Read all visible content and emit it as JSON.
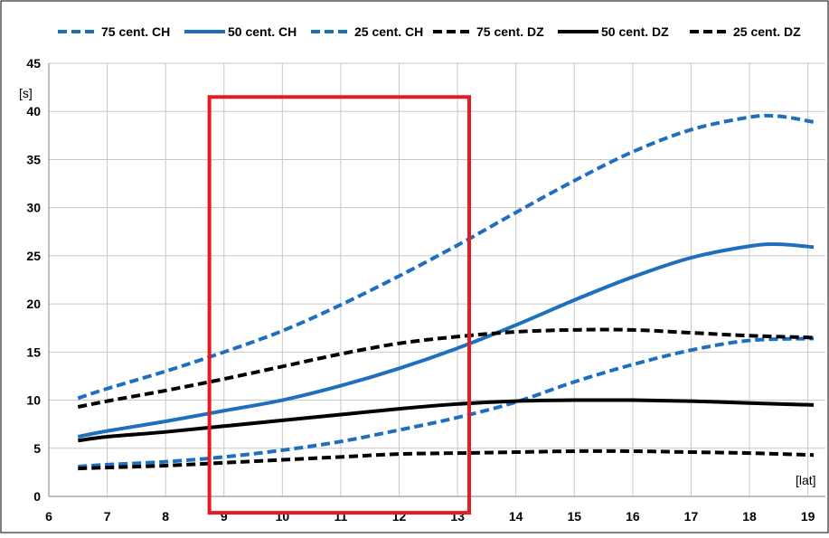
{
  "chart_data": {
    "type": "line",
    "title": "",
    "xlabel": "[lat]",
    "ylabel": "[s]",
    "xlim": [
      6,
      19.3
    ],
    "ylim": [
      0,
      45
    ],
    "xticks": [
      6,
      7,
      8,
      9,
      10,
      11,
      12,
      13,
      14,
      15,
      16,
      17,
      18,
      19
    ],
    "yticks": [
      0,
      5,
      10,
      15,
      20,
      25,
      30,
      35,
      40,
      45
    ],
    "grid": true,
    "legend_position": "top",
    "highlight_box": {
      "x_range": [
        8.75,
        13.2
      ],
      "y_range": [
        -1.7,
        41.5
      ],
      "color": "#e31b23"
    },
    "series": [
      {
        "name": "75 cent. CH",
        "color": "#1f6fbf",
        "style": "dashed",
        "x": [
          6.5,
          7,
          8,
          9,
          10,
          11,
          12,
          13,
          14,
          15,
          16,
          17,
          18,
          18.5,
          19.1
        ],
        "y": [
          10.2,
          11.2,
          13,
          15,
          17.2,
          19.9,
          22.9,
          26.1,
          29.5,
          32.8,
          35.8,
          38.1,
          39.4,
          39.5,
          38.9
        ]
      },
      {
        "name": "50 cent. CH",
        "color": "#1f6fbf",
        "style": "solid",
        "x": [
          6.5,
          7,
          8,
          9,
          10,
          11,
          12,
          13,
          14,
          15,
          16,
          17,
          18,
          18.5,
          19.1
        ],
        "y": [
          6.2,
          6.8,
          7.8,
          8.9,
          10,
          11.5,
          13.3,
          15.4,
          17.8,
          20.4,
          22.8,
          24.8,
          26,
          26.2,
          25.9
        ]
      },
      {
        "name": "25 cent. CH",
        "color": "#1f6fbf",
        "style": "dashed",
        "x": [
          6.5,
          7,
          8,
          9,
          10,
          11,
          12,
          13,
          14,
          15,
          16,
          17,
          18,
          19.1
        ],
        "y": [
          3.1,
          3.3,
          3.6,
          4.1,
          4.8,
          5.7,
          6.9,
          8.2,
          9.8,
          11.9,
          13.7,
          15.2,
          16.2,
          16.4
        ]
      },
      {
        "name": "75 cent. DZ",
        "color": "#000000",
        "style": "dashed",
        "x": [
          6.5,
          7,
          8,
          9,
          10,
          11,
          12,
          13,
          14,
          15,
          16,
          17,
          18,
          19.1
        ],
        "y": [
          9.3,
          9.9,
          11,
          12.2,
          13.5,
          14.8,
          15.9,
          16.6,
          17.1,
          17.3,
          17.3,
          17,
          16.7,
          16.5
        ]
      },
      {
        "name": "50 cent. DZ",
        "color": "#000000",
        "style": "solid",
        "x": [
          6.5,
          7,
          8,
          9,
          10,
          11,
          12,
          13,
          14,
          15,
          16,
          17,
          18,
          19.1
        ],
        "y": [
          5.8,
          6.2,
          6.7,
          7.3,
          7.9,
          8.5,
          9.1,
          9.6,
          9.9,
          10,
          10,
          9.9,
          9.7,
          9.5
        ]
      },
      {
        "name": "25 cent. DZ",
        "color": "#000000",
        "style": "dashed",
        "x": [
          6.5,
          7,
          8,
          9,
          10,
          11,
          12,
          13,
          14,
          15,
          16,
          17,
          18,
          19.1
        ],
        "y": [
          2.9,
          3,
          3.2,
          3.5,
          3.8,
          4.1,
          4.4,
          4.5,
          4.6,
          4.7,
          4.7,
          4.6,
          4.5,
          4.3
        ]
      }
    ]
  }
}
